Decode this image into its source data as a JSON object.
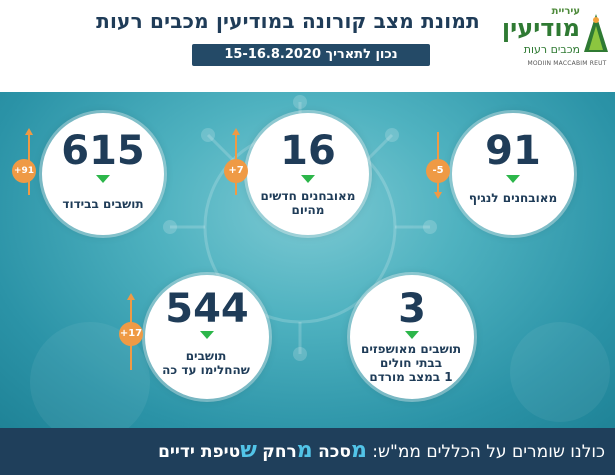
{
  "header": {
    "title": "תמונת מצב קורונה במודיעין מכבים רעות",
    "date": "נכון לתאריך 15-16.8.2020"
  },
  "logo": {
    "top": "עיריית",
    "main": "מודיעין",
    "sub": "מכבים רעות",
    "english": "MODIIN MACCABIM REUT"
  },
  "stats": {
    "recovered_community": {
      "value": "91",
      "label": "מאובחנים לנגיף",
      "change": "-5",
      "direction": "down"
    },
    "new_cases": {
      "value": "16",
      "label": "מאובחנים חדשים\nמהיום",
      "change": "+7",
      "direction": "up"
    },
    "isolation": {
      "value": "615",
      "label": "תושבים בבידוד",
      "change": "+91",
      "direction": "up"
    },
    "hospitalized": {
      "value": "3",
      "label": "תושבים מאושפזים\nבבתי חולים\n1 במצב מורדם",
      "change": "",
      "direction": "none"
    },
    "recovered": {
      "value": "544",
      "label": "תושבים\nשהחלימו עד כה",
      "change": "+17",
      "direction": "up"
    }
  },
  "footer": {
    "prefix": "כולנו שומרים על הכללים ממ\"ש:",
    "w1_letter": "מ",
    "w1_rest": "סכה",
    "w2_letter": "מ",
    "w2_rest": "רחק",
    "w3_letter": "ש",
    "w3_rest": "טיפת ידיים"
  },
  "colors": {
    "navy": "#1f3f5b",
    "teal": "#3aa7b7",
    "green_arrow": "#2cb64a",
    "orange": "#ef9a45",
    "accent_blue": "#52c4e8"
  }
}
